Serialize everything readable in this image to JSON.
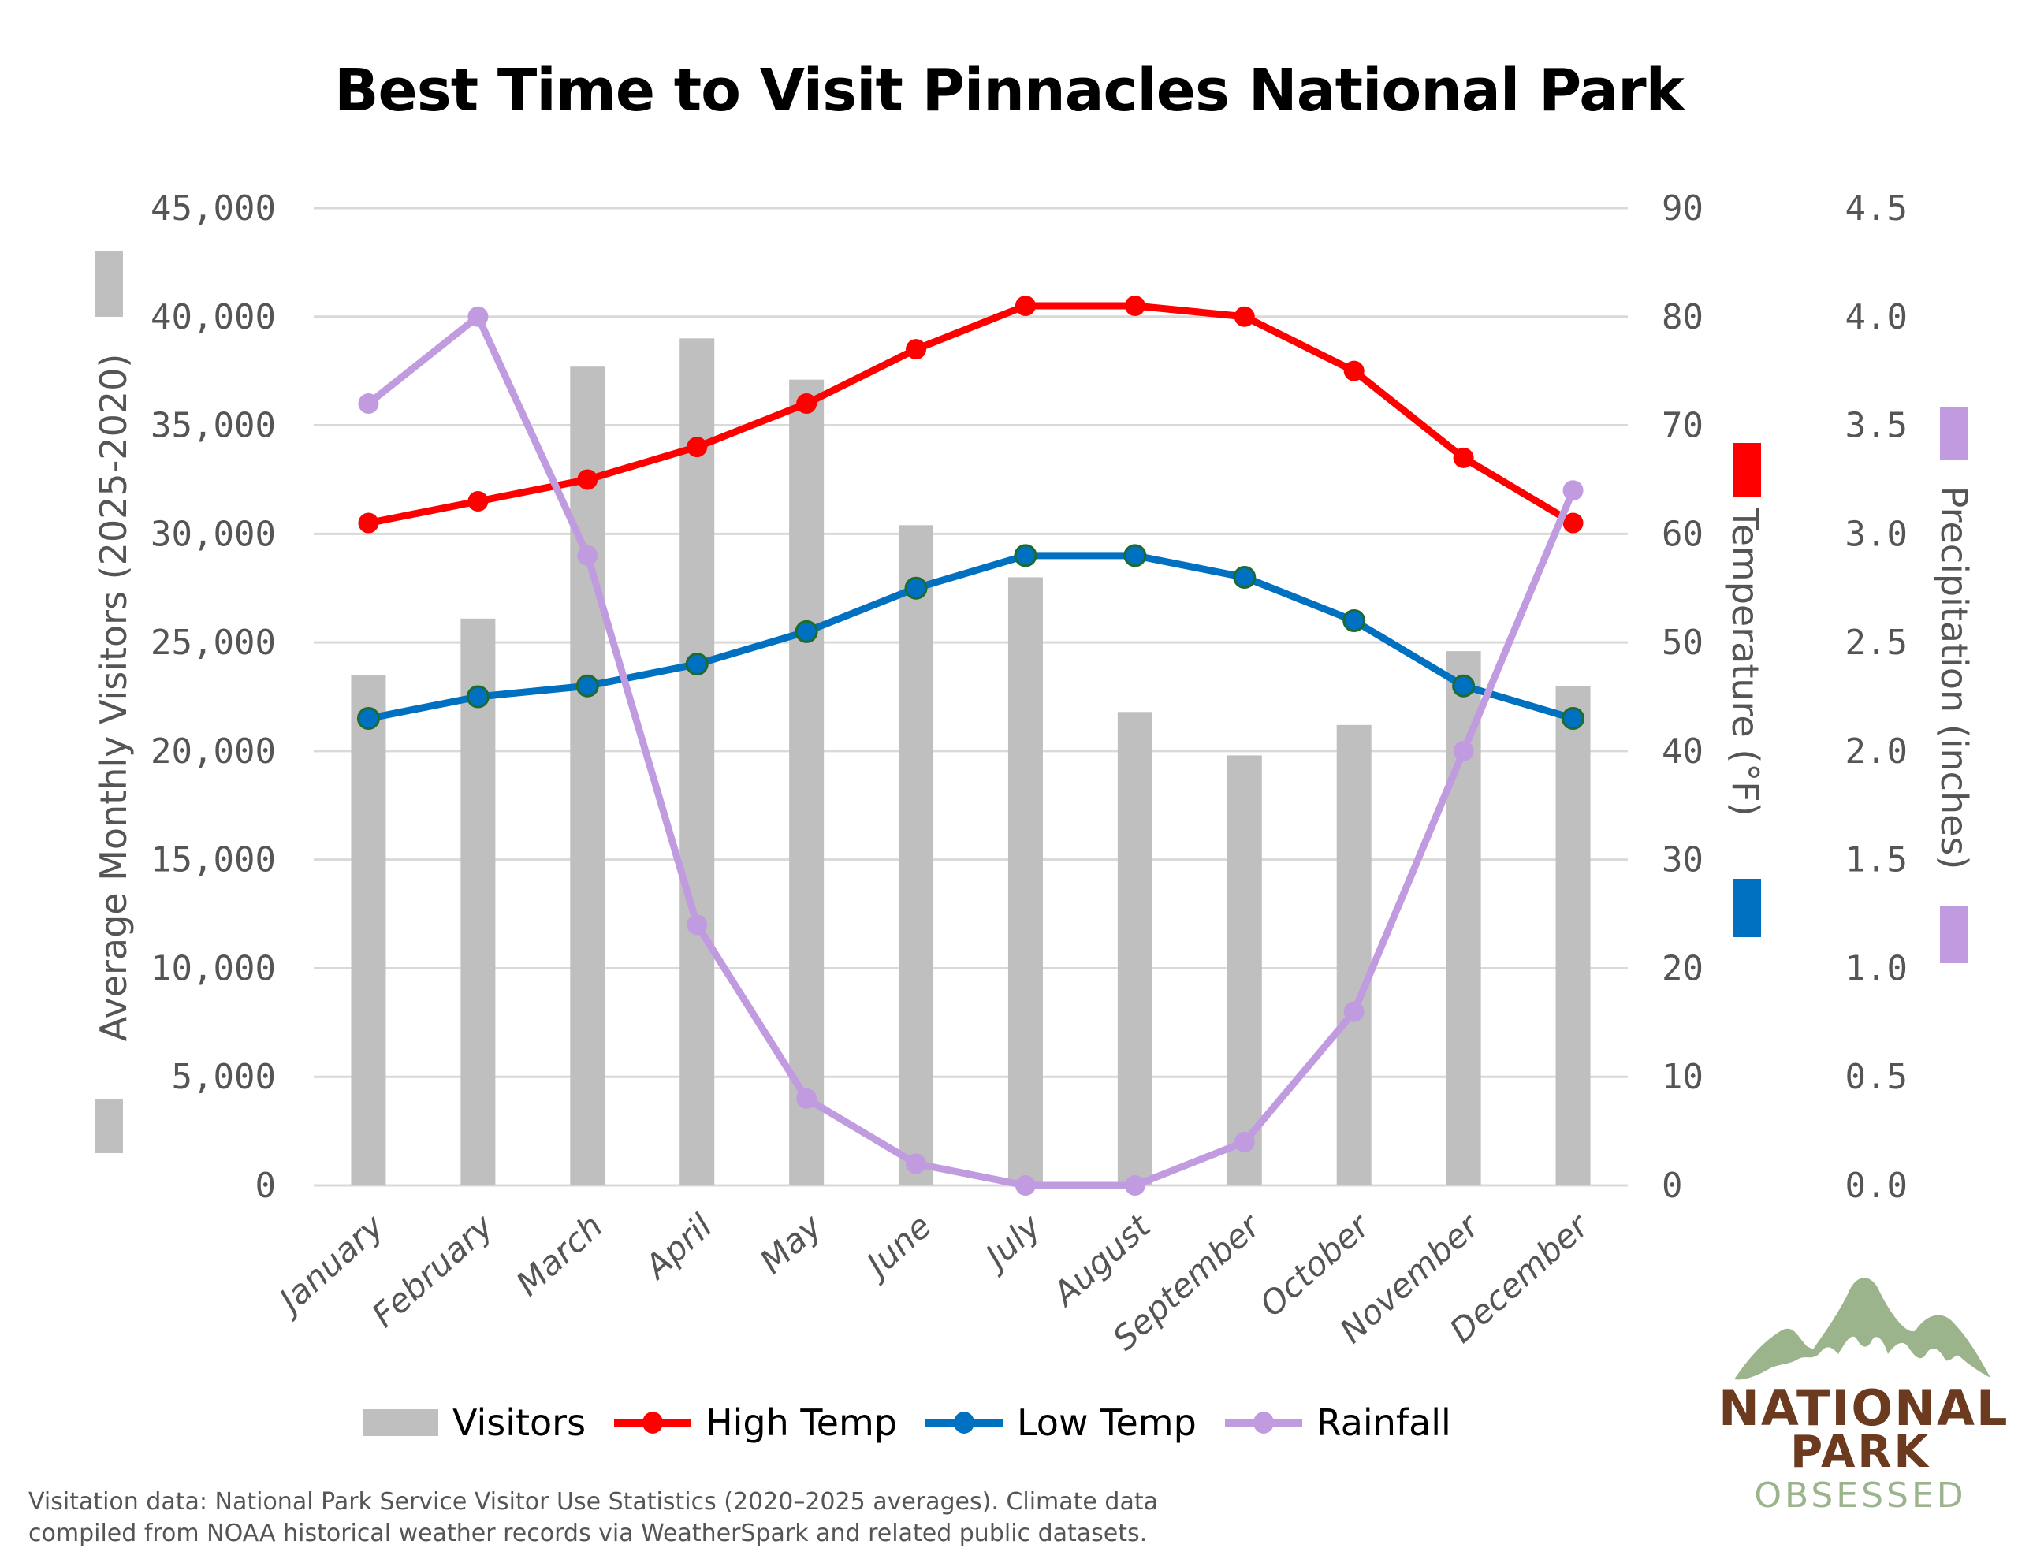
{
  "header": {
    "title": "Best Time to Visit Pinnacles National Park"
  },
  "chart_data": {
    "type": "bar+line",
    "title": "Best Time to Visit Pinnacles National Park",
    "categories": [
      "January",
      "February",
      "March",
      "April",
      "May",
      "June",
      "July",
      "August",
      "September",
      "October",
      "November",
      "December"
    ],
    "series": [
      {
        "name": "Visitors",
        "type": "bar",
        "axis": "left",
        "color": "#bfbfbf",
        "values": [
          23500,
          26100,
          37700,
          39000,
          37100,
          30400,
          28000,
          21800,
          19800,
          21200,
          24600,
          23000
        ]
      },
      {
        "name": "High Temp",
        "type": "line",
        "axis": "right-temp",
        "color": "#ff0000",
        "values": [
          61,
          63,
          65,
          68,
          72,
          77,
          81,
          81,
          80,
          75,
          67,
          61
        ]
      },
      {
        "name": "Low Temp",
        "type": "line",
        "axis": "right-temp",
        "color": "#0070c0",
        "values": [
          43,
          45,
          46,
          48,
          51,
          55,
          58,
          58,
          56,
          52,
          46,
          43
        ]
      },
      {
        "name": "Rainfall",
        "type": "line",
        "axis": "right-precip",
        "color": "#c09be0",
        "values": [
          3.6,
          4.0,
          2.9,
          1.2,
          0.4,
          0.1,
          0.0,
          0.0,
          0.2,
          0.8,
          2.0,
          3.2
        ]
      }
    ],
    "axes": {
      "left": {
        "label": "Average Monthly Visitors (2025-2020)",
        "range": [
          0,
          45000
        ],
        "ticks": [
          "0",
          "5,000",
          "10,000",
          "15,000",
          "20,000",
          "25,000",
          "30,000",
          "35,000",
          "40,000",
          "45,000"
        ]
      },
      "right_temp": {
        "label": "Temperature (°F)",
        "range": [
          0,
          90
        ],
        "ticks": [
          "0",
          "10",
          "20",
          "30",
          "40",
          "50",
          "60",
          "70",
          "80",
          "90"
        ]
      },
      "right_precip": {
        "label": "Precipitation (inches)",
        "range": [
          0,
          4.5
        ],
        "ticks": [
          "0.0",
          "0.5",
          "1.0",
          "1.5",
          "2.0",
          "2.5",
          "3.0",
          "3.5",
          "4.0",
          "4.5"
        ]
      }
    },
    "grid": true,
    "legend_position": "bottom"
  },
  "legend": {
    "visitors": "Visitors",
    "high_temp": "High Temp",
    "low_temp": "Low Temp",
    "rainfall": "Rainfall"
  },
  "colors": {
    "visitors": "#bfbfbf",
    "high_temp": "#ff0000",
    "low_temp": "#0070c0",
    "low_temp_marker_border": "#1e6b2e",
    "rainfall": "#c09be0",
    "grid": "#d9d9d9",
    "tick_text": "#555555",
    "logo_green": "#9bb48c",
    "logo_brown": "#6b3a1f"
  },
  "footer": {
    "line1": "Visitation data: National Park Service Visitor Use Statistics (2020–2025 averages). Climate data",
    "line2": "compiled from NOAA historical weather records via WeatherSpark and related public datasets."
  },
  "logo": {
    "line1": "NATIONAL",
    "line2": "PARK",
    "line3": "OBSESSED"
  }
}
